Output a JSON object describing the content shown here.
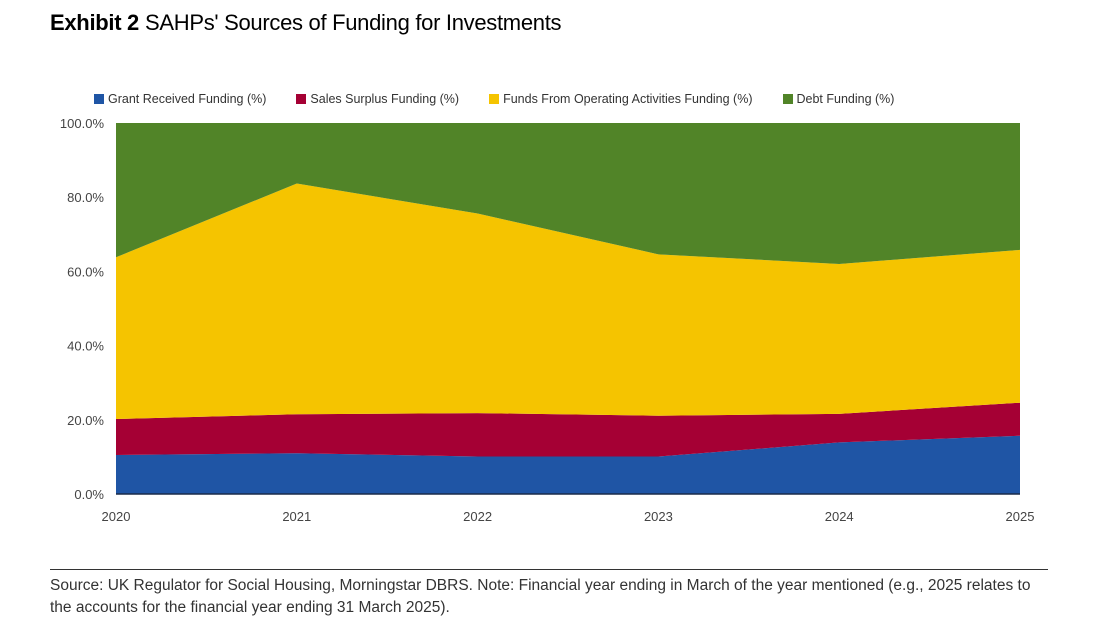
{
  "title": {
    "exhibit": "Exhibit 2",
    "text": "SAHPs' Sources of Funding for Investments"
  },
  "chart_data": {
    "type": "area",
    "stacked": true,
    "categories": [
      "2020",
      "2021",
      "2022",
      "2023",
      "2024",
      "2025"
    ],
    "series": [
      {
        "name": "Grant Received Funding (%)",
        "color": "#1f55a5",
        "values": [
          10.5,
          11.0,
          10.1,
          10.1,
          13.9,
          15.7
        ]
      },
      {
        "name": "Sales Surplus Funding (%)",
        "color": "#a50034",
        "values": [
          9.7,
          10.5,
          11.7,
          11.0,
          7.7,
          8.9
        ]
      },
      {
        "name": "Funds From Operating Activities Funding (%)",
        "color": "#f5c400",
        "values": [
          43.6,
          62.2,
          53.8,
          43.5,
          40.4,
          41.2
        ]
      },
      {
        "name": "Debt Funding (%)",
        "color": "#518428",
        "values": [
          36.2,
          16.3,
          24.4,
          35.4,
          38.0,
          34.2
        ]
      }
    ],
    "yticks": [
      "0.0%",
      "20.0%",
      "40.0%",
      "60.0%",
      "80.0%",
      "100.0%"
    ],
    "ylim": [
      0,
      100
    ],
    "legend": "top"
  },
  "source": "Source: UK Regulator for Social Housing, Morningstar DBRS. Note: Financial year ending in March of the year mentioned (e.g., 2025 relates to the accounts for the financial year ending 31 March 2025)."
}
